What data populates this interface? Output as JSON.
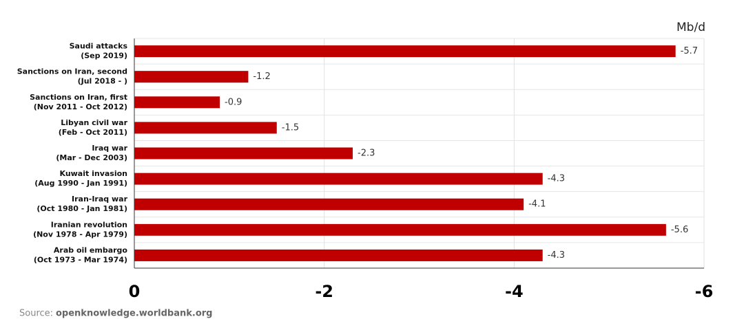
{
  "chart_data": {
    "type": "bar",
    "orientation": "horizontal",
    "unit_label": "Mb/d",
    "categories": [
      [
        "Saudi attacks",
        "(Sep 2019)"
      ],
      [
        "Sanctions on Iran, second",
        "(Jul 2018 - )"
      ],
      [
        "Sanctions on Iran, first",
        "(Nov 2011 - Oct 2012)"
      ],
      [
        "Libyan civil war",
        "(Feb - Oct 2011)"
      ],
      [
        "Iraq war",
        "(Mar - Dec 2003)"
      ],
      [
        "Kuwait invasion",
        "(Aug 1990 - Jan 1991)"
      ],
      [
        "Iran-Iraq war",
        "(Oct 1980 - Jan 1981)"
      ],
      [
        "Iranian revolution",
        "(Nov 1978 - Apr 1979)"
      ],
      [
        "Arab oil embargo",
        "(Oct 1973 - Mar 1974)"
      ]
    ],
    "values": [
      -5.7,
      -1.2,
      -0.9,
      -1.5,
      -2.3,
      -4.3,
      -4.1,
      -5.6,
      -4.3
    ],
    "color": "#c00000",
    "xlim": [
      0,
      -6
    ],
    "xticks": [
      0,
      -2,
      -4,
      -6
    ],
    "grid": true,
    "source_label": "Source:",
    "source": "openknowledge.worldbank.org"
  }
}
